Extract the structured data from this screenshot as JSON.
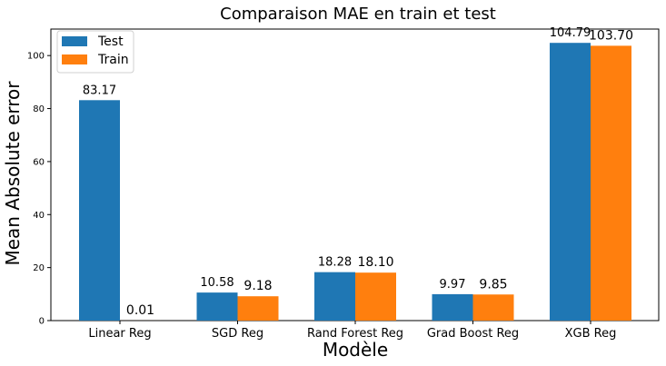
{
  "chart_data": {
    "type": "bar",
    "title": "Comparaison MAE en train et test",
    "xlabel": "Modèle",
    "ylabel": "Mean Absolute error",
    "categories": [
      "Linear Reg",
      "SGD Reg",
      "Rand Forest Reg",
      "Grad Boost Reg",
      "XGB Reg"
    ],
    "series": [
      {
        "name": "Test",
        "color": "#1f77b4",
        "values": [
          83.17,
          10.58,
          18.28,
          9.97,
          104.79
        ],
        "labels": [
          "83.17",
          "10.58",
          "18.28",
          "9.97",
          "104.79"
        ]
      },
      {
        "name": "Train",
        "color": "#ff7f0e",
        "values": [
          0.01,
          9.18,
          18.1,
          9.85,
          103.7
        ],
        "labels": [
          "0.01",
          "9.18",
          "18.10",
          "9.85",
          "103.70"
        ]
      }
    ],
    "ylim": [
      0,
      110
    ],
    "yticks": [
      0,
      20,
      40,
      60,
      80,
      100
    ],
    "legend_position": "top-left",
    "grid": false
  }
}
